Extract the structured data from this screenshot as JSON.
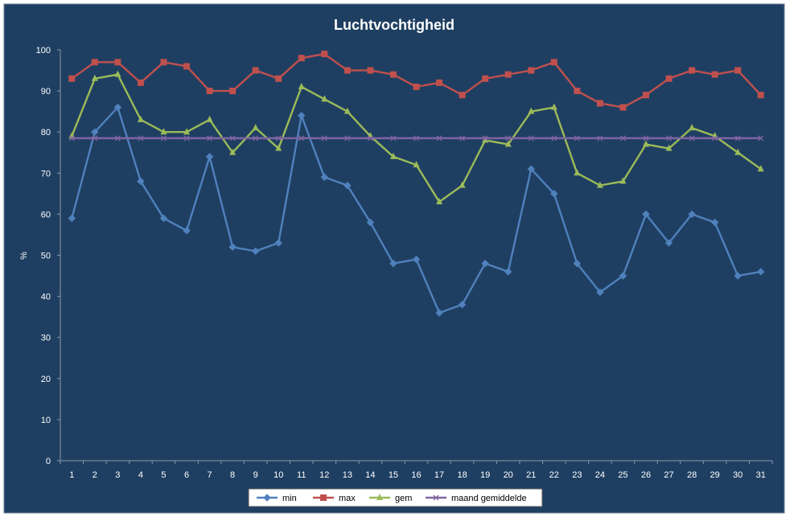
{
  "chart_data": {
    "type": "line",
    "title": "Luchtvochtigheid",
    "xlabel": "",
    "ylabel": "%",
    "ylim": [
      0,
      100
    ],
    "yticks": [
      "0",
      "10",
      "20",
      "30",
      "40",
      "50",
      "60",
      "70",
      "80",
      "90",
      "100"
    ],
    "categories": [
      "1",
      "2",
      "3",
      "4",
      "5",
      "6",
      "7",
      "8",
      "9",
      "10",
      "11",
      "12",
      "13",
      "14",
      "15",
      "16",
      "17",
      "18",
      "19",
      "20",
      "21",
      "22",
      "23",
      "24",
      "25",
      "26",
      "27",
      "28",
      "29",
      "30",
      "31"
    ],
    "grid": false,
    "legend_position": "bottom",
    "series": [
      {
        "name": "min",
        "color": "#4f81bd",
        "marker": "diamond",
        "values": [
          59,
          80,
          86,
          68,
          59,
          56,
          74,
          52,
          51,
          53,
          84,
          69,
          67,
          58,
          48,
          49,
          36,
          38,
          48,
          46,
          71,
          65,
          48,
          41,
          45,
          60,
          53,
          60,
          58,
          45,
          46
        ]
      },
      {
        "name": "max",
        "color": "#c0504d",
        "marker": "square",
        "values": [
          93,
          97,
          97,
          92,
          97,
          96,
          90,
          90,
          95,
          93,
          98,
          99,
          95,
          95,
          94,
          91,
          92,
          89,
          93,
          94,
          95,
          97,
          90,
          87,
          86,
          89,
          93,
          95,
          94,
          95,
          89
        ]
      },
      {
        "name": "gem",
        "color": "#9bbb59",
        "marker": "triangle",
        "values": [
          79,
          93,
          94,
          83,
          80,
          80,
          83,
          75,
          81,
          76,
          91,
          88,
          85,
          79,
          74,
          72,
          63,
          67,
          78,
          77,
          85,
          86,
          70,
          67,
          68,
          77,
          76,
          81,
          79,
          75,
          71
        ]
      },
      {
        "name": "maand gemiddelde",
        "color": "#8064a2",
        "marker": "x",
        "values": [
          78.5,
          78.5,
          78.5,
          78.5,
          78.5,
          78.5,
          78.5,
          78.5,
          78.5,
          78.5,
          78.5,
          78.5,
          78.5,
          78.5,
          78.5,
          78.5,
          78.5,
          78.5,
          78.5,
          78.5,
          78.5,
          78.5,
          78.5,
          78.5,
          78.5,
          78.5,
          78.5,
          78.5,
          78.5,
          78.5,
          78.5
        ]
      }
    ]
  },
  "colors": {
    "background": "#1f3f62",
    "axis": "#8899aa",
    "text": "#ffffff",
    "legend_bg": "#ffffff"
  }
}
